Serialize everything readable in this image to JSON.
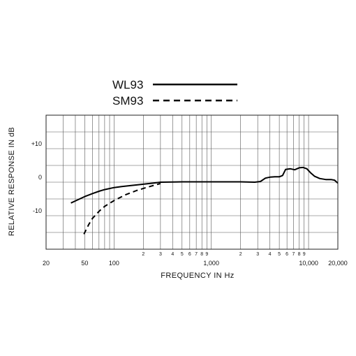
{
  "chart_data": {
    "type": "line",
    "xlabel": "FREQUENCY IN Hz",
    "ylabel": "RELATIVE RESPONSE IN dB",
    "x_scale": "log",
    "xlim": [
      20,
      20000
    ],
    "ylim": [
      -20,
      20
    ],
    "grid": true,
    "legend_position": "top",
    "x_tick_labels": [
      {
        "value": 20,
        "label": "20"
      },
      {
        "value": 50,
        "label": "50"
      },
      {
        "value": 100,
        "label": "100"
      },
      {
        "value": 200,
        "label": "2"
      },
      {
        "value": 300,
        "label": "3"
      },
      {
        "value": 400,
        "label": "4"
      },
      {
        "value": 500,
        "label": "5"
      },
      {
        "value": 600,
        "label": "6"
      },
      {
        "value": 700,
        "label": "7"
      },
      {
        "value": 800,
        "label": "8"
      },
      {
        "value": 900,
        "label": "9"
      },
      {
        "value": 1000,
        "label": "1,000"
      },
      {
        "value": 2000,
        "label": "2"
      },
      {
        "value": 3000,
        "label": "3"
      },
      {
        "value": 4000,
        "label": "4"
      },
      {
        "value": 5000,
        "label": "5"
      },
      {
        "value": 6000,
        "label": "6"
      },
      {
        "value": 7000,
        "label": "7"
      },
      {
        "value": 8000,
        "label": "8"
      },
      {
        "value": 9000,
        "label": "9"
      },
      {
        "value": 10000,
        "label": "10,000"
      },
      {
        "value": 20000,
        "label": "20,000"
      }
    ],
    "y_tick_labels": [
      {
        "value": 10,
        "label": "+10"
      },
      {
        "value": 0,
        "label": "0"
      },
      {
        "value": -10,
        "label": "-10"
      }
    ],
    "series": [
      {
        "name": "WL93",
        "style": "solid",
        "color": "#000000",
        "points": [
          [
            36,
            -6.2
          ],
          [
            40,
            -5.6
          ],
          [
            50,
            -4.3
          ],
          [
            60,
            -3.4
          ],
          [
            70,
            -2.7
          ],
          [
            80,
            -2.2
          ],
          [
            100,
            -1.6
          ],
          [
            120,
            -1.3
          ],
          [
            150,
            -1.0
          ],
          [
            200,
            -0.6
          ],
          [
            250,
            -0.3
          ],
          [
            300,
            0.0
          ],
          [
            500,
            0.1
          ],
          [
            1000,
            0.1
          ],
          [
            2000,
            0.1
          ],
          [
            2800,
            0.0
          ],
          [
            3200,
            0.2
          ],
          [
            3600,
            1.2
          ],
          [
            4000,
            1.5
          ],
          [
            4500,
            1.6
          ],
          [
            5000,
            1.6
          ],
          [
            5400,
            2.0
          ],
          [
            5800,
            3.8
          ],
          [
            6500,
            4.0
          ],
          [
            7200,
            3.7
          ],
          [
            8000,
            4.3
          ],
          [
            8800,
            4.4
          ],
          [
            9600,
            4.0
          ],
          [
            10500,
            2.8
          ],
          [
            11500,
            1.8
          ],
          [
            13000,
            1.1
          ],
          [
            15000,
            0.8
          ],
          [
            17000,
            0.8
          ],
          [
            18500,
            0.6
          ],
          [
            20000,
            -0.3
          ]
        ]
      },
      {
        "name": "SM93",
        "style": "dashed",
        "color": "#000000",
        "points": [
          [
            49,
            -15.5
          ],
          [
            55,
            -12.6
          ],
          [
            60,
            -10.8
          ],
          [
            70,
            -8.7
          ],
          [
            80,
            -7.2
          ],
          [
            100,
            -5.5
          ],
          [
            130,
            -3.8
          ],
          [
            170,
            -2.5
          ],
          [
            220,
            -1.5
          ],
          [
            300,
            -0.4
          ]
        ]
      }
    ]
  }
}
